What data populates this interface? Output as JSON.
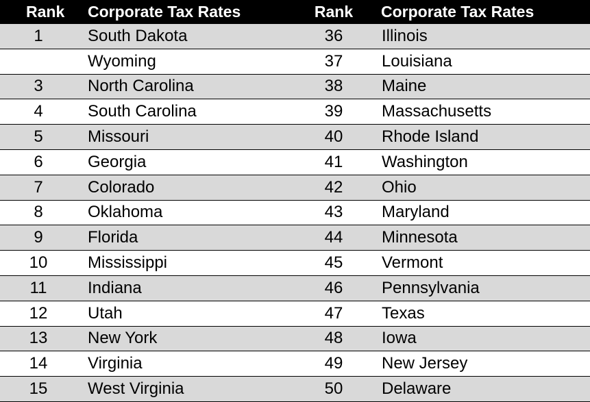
{
  "header": {
    "rank_left": "Rank",
    "name_left": "Corporate Tax Rates",
    "rank_right": "Rank",
    "name_right": "Corporate Tax Rates"
  },
  "rows": [
    {
      "rank1": "1",
      "name1": "South Dakota",
      "rank2": "36",
      "name2": "Illinois"
    },
    {
      "rank1": "",
      "name1": "Wyoming",
      "rank2": "37",
      "name2": "Louisiana"
    },
    {
      "rank1": "3",
      "name1": "North Carolina",
      "rank2": "38",
      "name2": "Maine"
    },
    {
      "rank1": "4",
      "name1": "South Carolina",
      "rank2": "39",
      "name2": "Massachusetts"
    },
    {
      "rank1": "5",
      "name1": "Missouri",
      "rank2": "40",
      "name2": "Rhode Island"
    },
    {
      "rank1": "6",
      "name1": "Georgia",
      "rank2": "41",
      "name2": "Washington"
    },
    {
      "rank1": "7",
      "name1": "Colorado",
      "rank2": "42",
      "name2": "Ohio"
    },
    {
      "rank1": "8",
      "name1": "Oklahoma",
      "rank2": "43",
      "name2": "Maryland"
    },
    {
      "rank1": "9",
      "name1": "Florida",
      "rank2": "44",
      "name2": "Minnesota"
    },
    {
      "rank1": "10",
      "name1": "Mississippi",
      "rank2": "45",
      "name2": "Vermont"
    },
    {
      "rank1": "11",
      "name1": "Indiana",
      "rank2": "46",
      "name2": "Pennsylvania"
    },
    {
      "rank1": "12",
      "name1": "Utah",
      "rank2": "47",
      "name2": "Texas"
    },
    {
      "rank1": "13",
      "name1": "New York",
      "rank2": "48",
      "name2": "Iowa"
    },
    {
      "rank1": "14",
      "name1": "Virginia",
      "rank2": "49",
      "name2": "New Jersey"
    },
    {
      "rank1": "15",
      "name1": "West Virginia",
      "rank2": "50",
      "name2": "Delaware"
    }
  ],
  "colors": {
    "header_bg": "#000000",
    "header_text": "#ffffff",
    "shaded_row": "#d9d9d9",
    "plain_row": "#ffffff"
  }
}
